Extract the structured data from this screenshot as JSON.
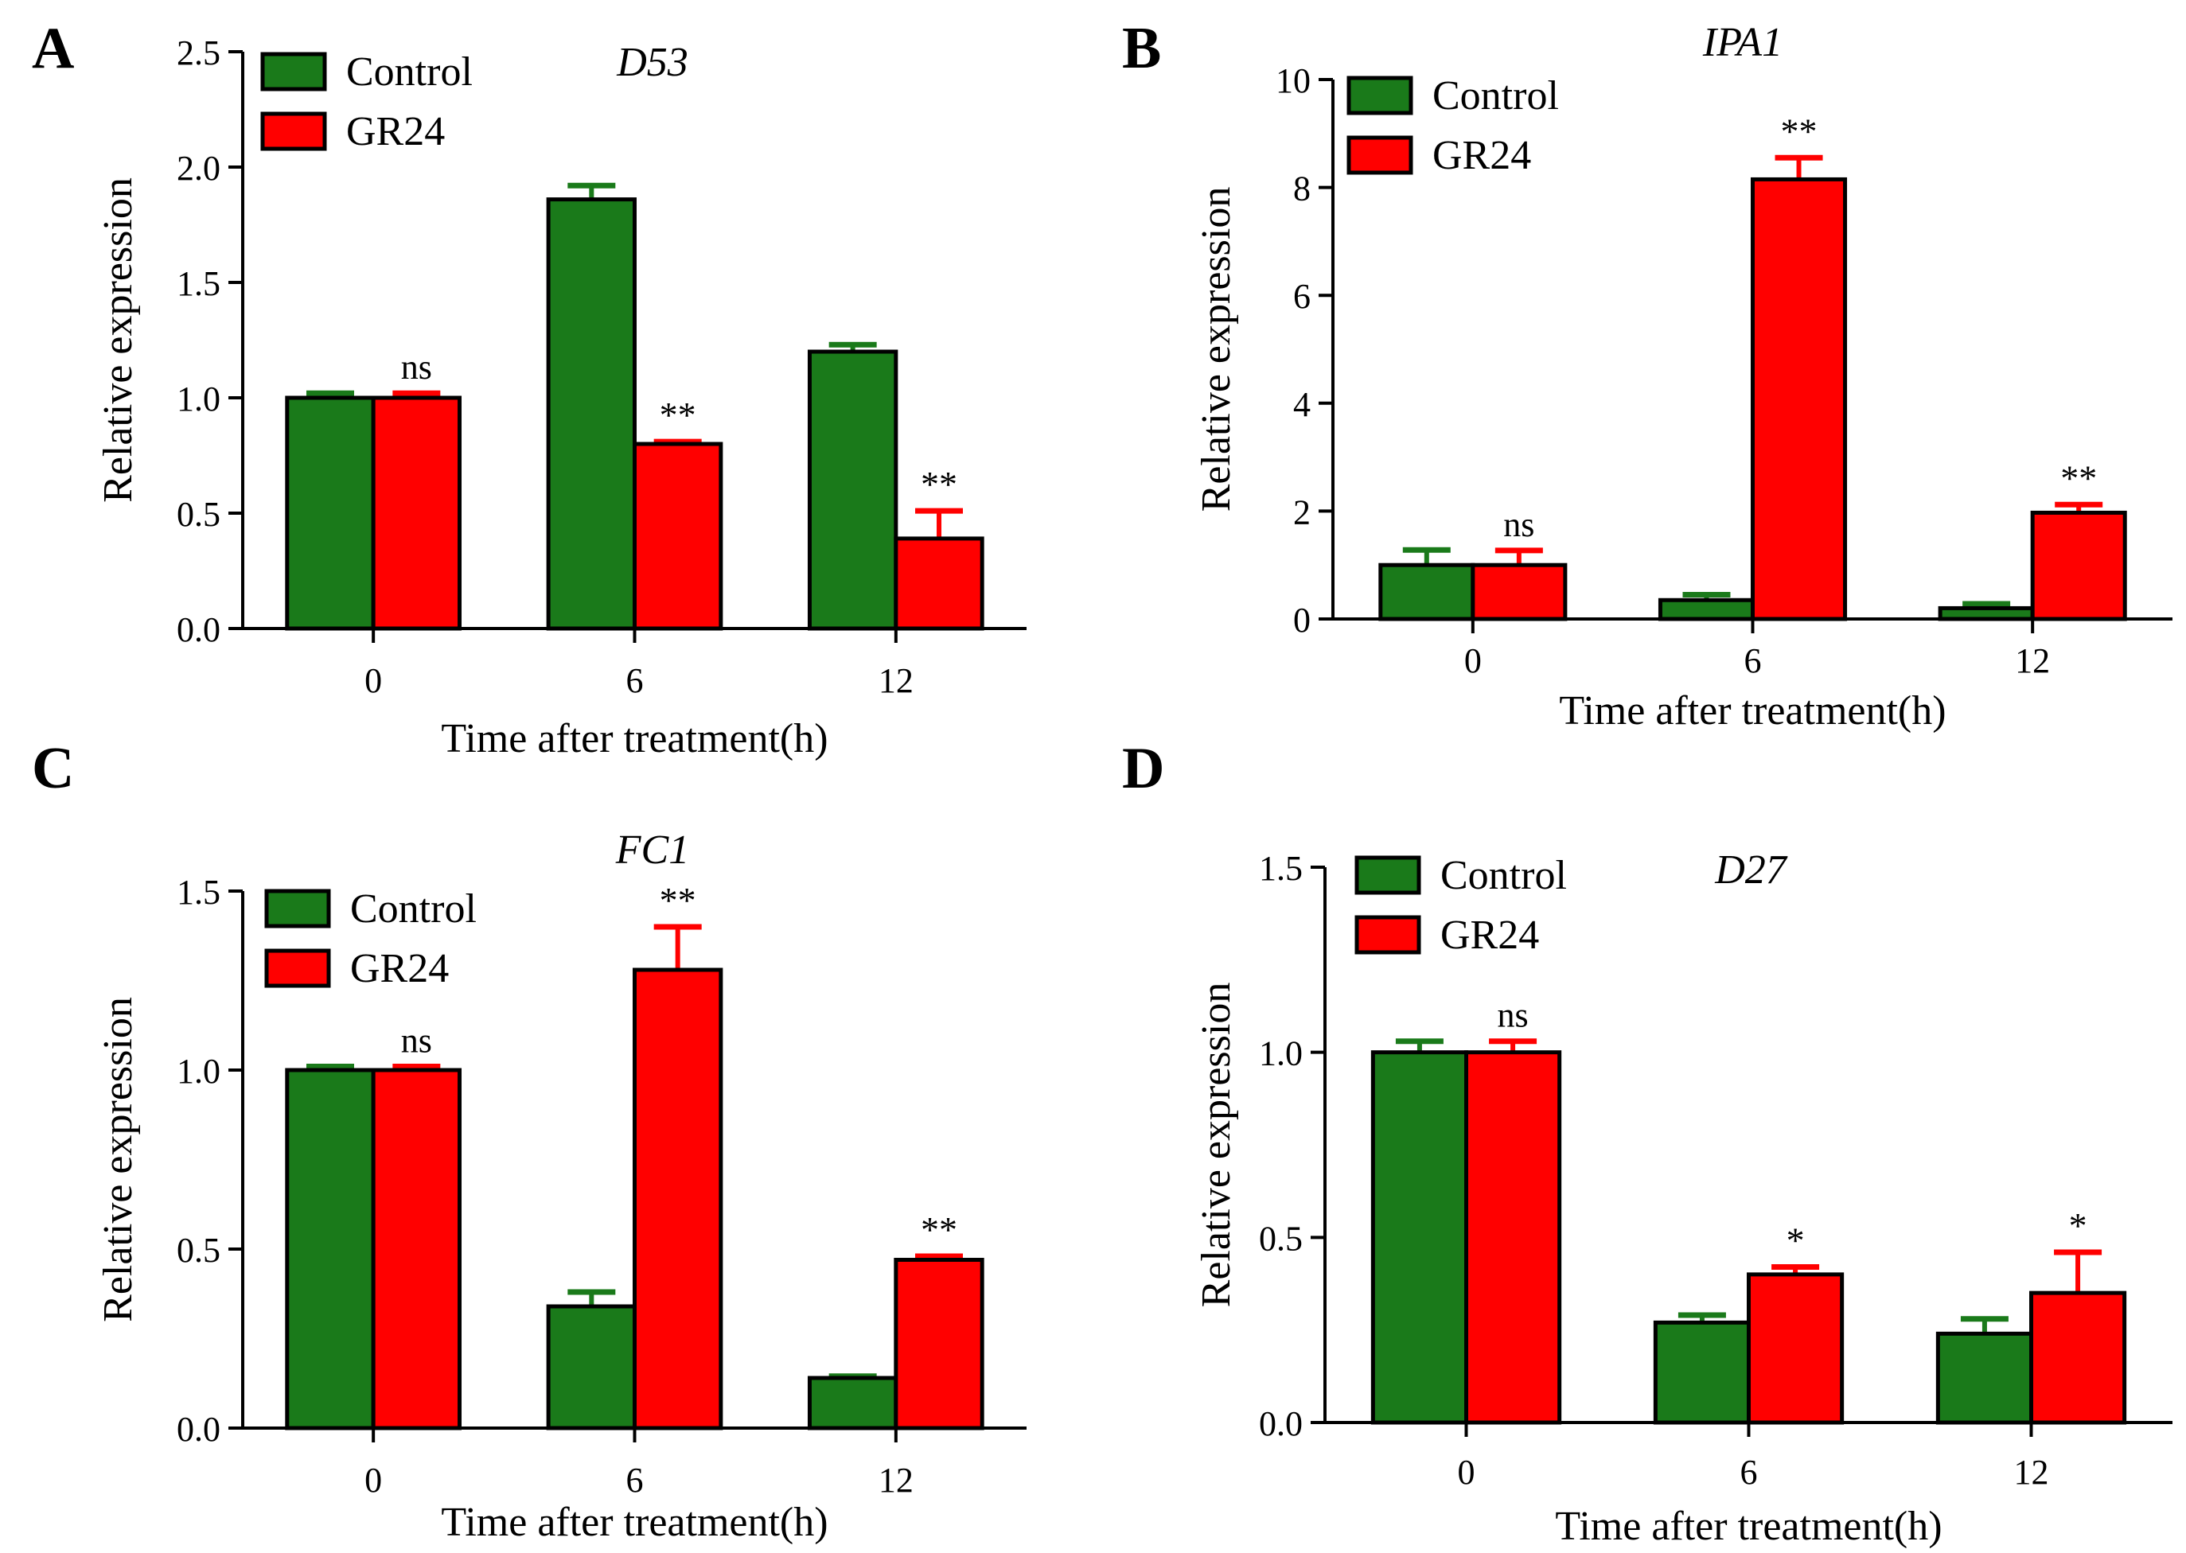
{
  "colors": {
    "control": "#1a7a1a",
    "gr24": "#ff0000",
    "axis": "#000000"
  },
  "chart_data": [
    {
      "panel": "A",
      "type": "bar",
      "title": "D53",
      "xlabel": "Time after treatment(h)",
      "ylabel": "Relative expression",
      "categories": [
        "0",
        "6",
        "12"
      ],
      "ylim": [
        0,
        2.5
      ],
      "yticks": [
        "0.0",
        "0.5",
        "1.0",
        "1.5",
        "2.0",
        "2.5"
      ],
      "legend_position": "top-left",
      "series": [
        {
          "name": "Control",
          "values": [
            1.0,
            1.86,
            1.2
          ],
          "errors": [
            0.02,
            0.06,
            0.03
          ]
        },
        {
          "name": "GR24",
          "values": [
            1.0,
            0.8,
            0.39
          ],
          "errors": [
            0.02,
            0.01,
            0.12
          ]
        }
      ],
      "annotations": [
        "ns",
        "**",
        "**"
      ]
    },
    {
      "panel": "B",
      "type": "bar",
      "title": "IPA1",
      "xlabel": "Time after treatment(h)",
      "ylabel": "Relative expression",
      "categories": [
        "0",
        "6",
        "12"
      ],
      "ylim": [
        0,
        10
      ],
      "yticks": [
        "0",
        "2",
        "4",
        "6",
        "8",
        "10"
      ],
      "legend_position": "top-left",
      "series": [
        {
          "name": "Control",
          "values": [
            1.0,
            0.35,
            0.2
          ],
          "errors": [
            0.28,
            0.1,
            0.08
          ]
        },
        {
          "name": "GR24",
          "values": [
            1.0,
            8.15,
            1.97
          ],
          "errors": [
            0.27,
            0.4,
            0.15
          ]
        }
      ],
      "annotations": [
        "ns",
        "**",
        "**"
      ]
    },
    {
      "panel": "C",
      "type": "bar",
      "title": "FC1",
      "xlabel": "Time after treatment(h)",
      "ylabel": "Relative expression",
      "categories": [
        "0",
        "6",
        "12"
      ],
      "ylim": [
        0,
        1.5
      ],
      "yticks": [
        "0.0",
        "0.5",
        "1.0",
        "1.5"
      ],
      "legend_position": "top-left",
      "series": [
        {
          "name": "Control",
          "values": [
            1.0,
            0.34,
            0.14
          ],
          "errors": [
            0.01,
            0.04,
            0.005
          ]
        },
        {
          "name": "GR24",
          "values": [
            1.0,
            1.28,
            0.47
          ],
          "errors": [
            0.01,
            0.12,
            0.01
          ]
        }
      ],
      "annotations": [
        "ns",
        "**",
        "**"
      ]
    },
    {
      "panel": "D",
      "type": "bar",
      "title": "D27",
      "xlabel": "Time after treatment(h)",
      "ylabel": "Relative expression",
      "categories": [
        "0",
        "6",
        "12"
      ],
      "ylim": [
        0,
        1.5
      ],
      "yticks": [
        "0.0",
        "0.5",
        "1.0",
        "1.5"
      ],
      "legend_position": "top-left",
      "series": [
        {
          "name": "Control",
          "values": [
            1.0,
            0.27,
            0.24
          ],
          "errors": [
            0.03,
            0.02,
            0.04
          ]
        },
        {
          "name": "GR24",
          "values": [
            1.0,
            0.4,
            0.35
          ],
          "errors": [
            0.03,
            0.02,
            0.11
          ]
        }
      ],
      "annotations": [
        "ns",
        "*",
        "*"
      ]
    }
  ]
}
